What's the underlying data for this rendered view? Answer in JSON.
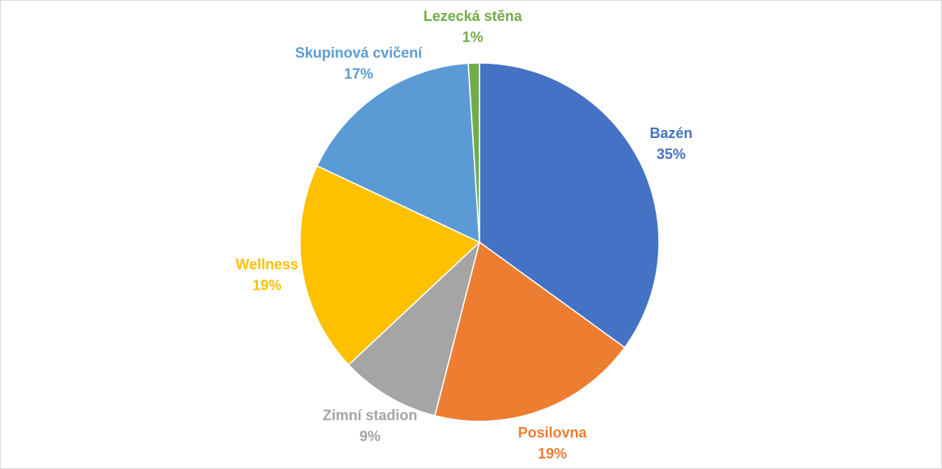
{
  "chart_data": {
    "type": "pie",
    "categories": [
      "Bazén",
      "Posilovna",
      "Zimní stadion",
      "Wellness",
      "Skupinová cvičení",
      "Lezecká stěna"
    ],
    "values": [
      35,
      19,
      9,
      19,
      17,
      1
    ],
    "value_labels": [
      "35%",
      "19%",
      "9%",
      "19%",
      "17%",
      "1%"
    ],
    "colors": [
      "#4472c4",
      "#ed7d31",
      "#a5a5a5",
      "#ffc000",
      "#5b9bd5",
      "#70ad47"
    ]
  }
}
